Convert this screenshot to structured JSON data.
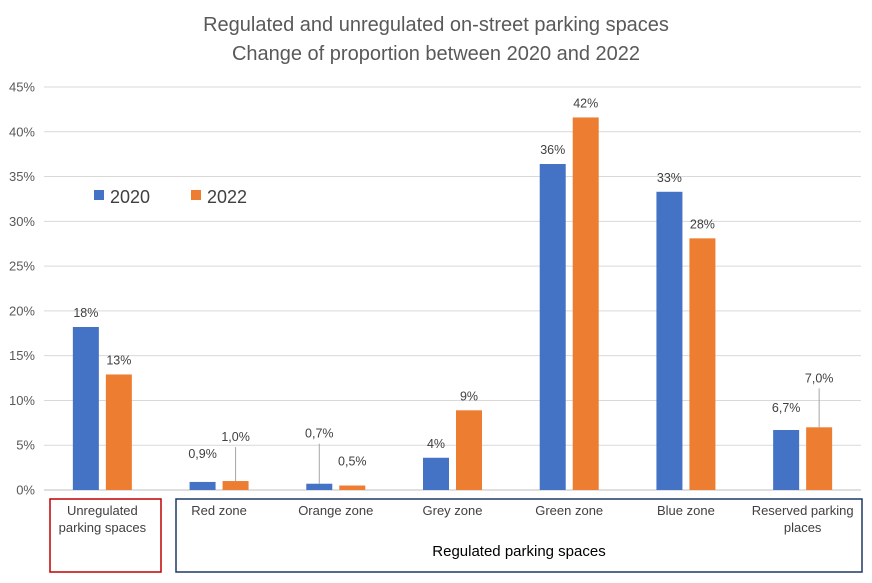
{
  "chart_data": {
    "type": "bar",
    "title": [
      "Regulated and unregulated on-street parking spaces",
      "Change of proportion between 2020 and 2022"
    ],
    "categories": [
      [
        "Unregulated",
        "parking spaces"
      ],
      [
        "Red zone"
      ],
      [
        "Orange zone"
      ],
      [
        "Grey zone"
      ],
      [
        "Green zone"
      ],
      [
        "Blue zone"
      ],
      [
        "Reserved parking",
        "places"
      ]
    ],
    "series": [
      {
        "name": "2020",
        "color": "#4472C4",
        "values": [
          18.2,
          0.9,
          0.7,
          3.6,
          36.4,
          33.3,
          6.7
        ],
        "labels": [
          "18%",
          "0,9%",
          "0,7%",
          "4%",
          "36%",
          "33%",
          "6,7%"
        ]
      },
      {
        "name": "2022",
        "color": "#ED7D31",
        "values": [
          12.9,
          1.0,
          0.5,
          8.9,
          41.6,
          28.1,
          7.0
        ],
        "labels": [
          "13%",
          "1,0%",
          "0,5%",
          "9%",
          "42%",
          "28%",
          "7,0%"
        ]
      }
    ],
    "ylim": [
      0,
      45
    ],
    "yticks": [
      0,
      5,
      10,
      15,
      20,
      25,
      30,
      35,
      40,
      45
    ],
    "ytick_labels": [
      "0%",
      "5%",
      "10%",
      "15%",
      "20%",
      "25%",
      "30%",
      "35%",
      "40%",
      "45%"
    ],
    "grid": true,
    "legend": "upper-left inside plot",
    "groups": [
      {
        "label": "",
        "color": "#C00000",
        "categories": [
          0
        ]
      },
      {
        "label": "Regulated parking spaces",
        "color": "#1F3864",
        "categories": [
          1,
          2,
          3,
          4,
          5,
          6
        ]
      }
    ],
    "leader_lines": [
      "1",
      "2",
      "6"
    ]
  }
}
